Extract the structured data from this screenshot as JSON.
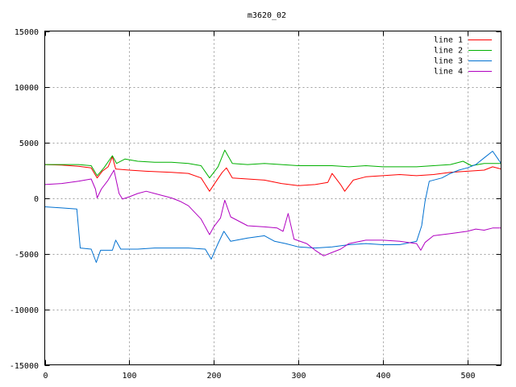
{
  "chart_data": {
    "type": "line",
    "title": "m3620_02",
    "xlabel": "",
    "ylabel": "",
    "xlim": [
      0,
      540
    ],
    "ylim": [
      -15000,
      15000
    ],
    "xticks": [
      0,
      100,
      200,
      300,
      400,
      500
    ],
    "yticks": [
      -15000,
      -10000,
      -5000,
      0,
      5000,
      10000,
      15000
    ],
    "grid": true,
    "legend_position": "top-right",
    "series": [
      {
        "name": "line 1",
        "color": "#ff0000",
        "points": [
          [
            0,
            3000
          ],
          [
            20,
            2950
          ],
          [
            40,
            2850
          ],
          [
            55,
            2700
          ],
          [
            62,
            1800
          ],
          [
            68,
            2400
          ],
          [
            75,
            2800
          ],
          [
            80,
            3700
          ],
          [
            84,
            2600
          ],
          [
            100,
            2500
          ],
          [
            120,
            2400
          ],
          [
            150,
            2300
          ],
          [
            170,
            2200
          ],
          [
            185,
            1800
          ],
          [
            195,
            600
          ],
          [
            202,
            1400
          ],
          [
            210,
            2300
          ],
          [
            215,
            2700
          ],
          [
            222,
            1800
          ],
          [
            240,
            1700
          ],
          [
            260,
            1600
          ],
          [
            280,
            1300
          ],
          [
            300,
            1100
          ],
          [
            320,
            1200
          ],
          [
            335,
            1400
          ],
          [
            340,
            2200
          ],
          [
            350,
            1200
          ],
          [
            355,
            600
          ],
          [
            365,
            1600
          ],
          [
            380,
            1900
          ],
          [
            400,
            2000
          ],
          [
            420,
            2100
          ],
          [
            440,
            2000
          ],
          [
            460,
            2100
          ],
          [
            480,
            2300
          ],
          [
            500,
            2400
          ],
          [
            520,
            2500
          ],
          [
            530,
            2800
          ],
          [
            540,
            2600
          ]
        ]
      },
      {
        "name": "line 2",
        "color": "#00b000",
        "points": [
          [
            0,
            3000
          ],
          [
            20,
            3000
          ],
          [
            40,
            3000
          ],
          [
            55,
            2900
          ],
          [
            62,
            2000
          ],
          [
            70,
            2700
          ],
          [
            80,
            3800
          ],
          [
            85,
            3100
          ],
          [
            95,
            3500
          ],
          [
            110,
            3300
          ],
          [
            130,
            3200
          ],
          [
            150,
            3200
          ],
          [
            170,
            3100
          ],
          [
            185,
            2900
          ],
          [
            195,
            1800
          ],
          [
            205,
            2800
          ],
          [
            213,
            4300
          ],
          [
            222,
            3100
          ],
          [
            240,
            3000
          ],
          [
            260,
            3100
          ],
          [
            280,
            3000
          ],
          [
            300,
            2900
          ],
          [
            320,
            2900
          ],
          [
            340,
            2900
          ],
          [
            360,
            2800
          ],
          [
            380,
            2900
          ],
          [
            400,
            2800
          ],
          [
            420,
            2800
          ],
          [
            440,
            2800
          ],
          [
            460,
            2900
          ],
          [
            480,
            3000
          ],
          [
            495,
            3300
          ],
          [
            505,
            2900
          ],
          [
            520,
            3100
          ],
          [
            540,
            3100
          ]
        ]
      },
      {
        "name": "line 3",
        "color": "#0070d0",
        "points": [
          [
            0,
            -800
          ],
          [
            20,
            -900
          ],
          [
            38,
            -1000
          ],
          [
            42,
            -4500
          ],
          [
            55,
            -4600
          ],
          [
            61,
            -5800
          ],
          [
            66,
            -4700
          ],
          [
            80,
            -4700
          ],
          [
            84,
            -3800
          ],
          [
            90,
            -4600
          ],
          [
            110,
            -4600
          ],
          [
            130,
            -4500
          ],
          [
            150,
            -4500
          ],
          [
            170,
            -4500
          ],
          [
            190,
            -4600
          ],
          [
            197,
            -5500
          ],
          [
            205,
            -4100
          ],
          [
            212,
            -3000
          ],
          [
            220,
            -3900
          ],
          [
            240,
            -3600
          ],
          [
            260,
            -3400
          ],
          [
            272,
            -3900
          ],
          [
            285,
            -4100
          ],
          [
            300,
            -4400
          ],
          [
            320,
            -4500
          ],
          [
            340,
            -4400
          ],
          [
            360,
            -4200
          ],
          [
            380,
            -4100
          ],
          [
            400,
            -4200
          ],
          [
            420,
            -4200
          ],
          [
            440,
            -3900
          ],
          [
            446,
            -2500
          ],
          [
            450,
            -300
          ],
          [
            455,
            1500
          ],
          [
            470,
            1800
          ],
          [
            480,
            2200
          ],
          [
            490,
            2500
          ],
          [
            500,
            2700
          ],
          [
            510,
            3000
          ],
          [
            520,
            3600
          ],
          [
            530,
            4200
          ],
          [
            540,
            3100
          ]
        ]
      },
      {
        "name": "line 4",
        "color": "#b000c0",
        "points": [
          [
            0,
            1200
          ],
          [
            20,
            1300
          ],
          [
            40,
            1500
          ],
          [
            55,
            1700
          ],
          [
            60,
            800
          ],
          [
            62,
            0
          ],
          [
            67,
            800
          ],
          [
            75,
            1600
          ],
          [
            82,
            2500
          ],
          [
            88,
            400
          ],
          [
            92,
            -100
          ],
          [
            100,
            100
          ],
          [
            110,
            400
          ],
          [
            120,
            600
          ],
          [
            130,
            400
          ],
          [
            150,
            0
          ],
          [
            160,
            -300
          ],
          [
            170,
            -700
          ],
          [
            185,
            -1900
          ],
          [
            195,
            -3300
          ],
          [
            200,
            -2600
          ],
          [
            208,
            -1800
          ],
          [
            213,
            -200
          ],
          [
            220,
            -1700
          ],
          [
            240,
            -2500
          ],
          [
            260,
            -2600
          ],
          [
            275,
            -2700
          ],
          [
            282,
            -3000
          ],
          [
            288,
            -1400
          ],
          [
            295,
            -3700
          ],
          [
            310,
            -4100
          ],
          [
            320,
            -4700
          ],
          [
            330,
            -5200
          ],
          [
            340,
            -4900
          ],
          [
            350,
            -4600
          ],
          [
            360,
            -4100
          ],
          [
            380,
            -3800
          ],
          [
            400,
            -3800
          ],
          [
            420,
            -3900
          ],
          [
            440,
            -4100
          ],
          [
            445,
            -4700
          ],
          [
            450,
            -4000
          ],
          [
            460,
            -3400
          ],
          [
            480,
            -3200
          ],
          [
            500,
            -3000
          ],
          [
            510,
            -2800
          ],
          [
            520,
            -2900
          ],
          [
            530,
            -2700
          ],
          [
            540,
            -2700
          ]
        ]
      }
    ]
  }
}
